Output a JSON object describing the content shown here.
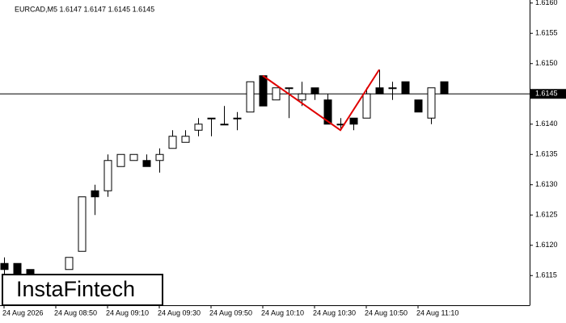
{
  "chart_data": {
    "type": "candlestick",
    "title": "EURCAD,M5  1.6147 1.6147 1.6145 1.6145",
    "brand": "InstaFintech",
    "categories": [
      "24 Aug 2026",
      null,
      null,
      null,
      "24 Aug 08:50",
      null,
      null,
      null,
      "24 Aug 09:10",
      null,
      null,
      null,
      "24 Aug 09:30",
      null,
      null,
      null,
      "24 Aug 09:50",
      null,
      null,
      null,
      "24 Aug 10:10",
      null,
      null,
      null,
      "24 Aug 10:30",
      null,
      null,
      null,
      "24 Aug 10:50",
      null,
      null,
      null,
      "24 Aug 11:10",
      null,
      null
    ],
    "open": [
      1.6117,
      1.6117,
      1.6116,
      null,
      null,
      1.6116,
      1.6119,
      1.6129,
      1.6129,
      1.6133,
      1.6134,
      1.6134,
      1.6134,
      1.6136,
      1.6137,
      1.6139,
      1.6141,
      1.614,
      1.6141,
      1.6142,
      1.6148,
      1.6144,
      1.6146,
      1.6144,
      1.6146,
      1.6144,
      1.614,
      1.6141,
      1.6141,
      1.6146,
      1.6146,
      1.6147,
      1.6144,
      1.6141,
      1.6147
    ],
    "high": [
      1.6118,
      1.6117,
      1.6116,
      null,
      null,
      1.6118,
      1.6128,
      1.613,
      1.6135,
      1.6135,
      1.6135,
      1.6135,
      1.6136,
      1.6139,
      1.6139,
      1.6141,
      1.6141,
      1.6143,
      1.6142,
      1.6147,
      1.6148,
      1.6146,
      1.6146,
      1.6147,
      1.6146,
      1.6145,
      1.6141,
      1.6141,
      1.6146,
      1.6149,
      1.6147,
      1.6147,
      1.6144,
      1.6146,
      1.6147
    ],
    "low": [
      1.6115,
      1.6114,
      1.6114,
      null,
      null,
      1.6116,
      1.6119,
      1.6125,
      1.6128,
      1.6133,
      1.6134,
      1.6133,
      1.6132,
      1.6136,
      1.6137,
      1.6138,
      1.6138,
      1.614,
      1.6139,
      1.6142,
      1.6143,
      1.6144,
      1.6141,
      1.6143,
      1.6144,
      1.614,
      1.6139,
      1.6139,
      1.6141,
      1.6145,
      1.6144,
      1.6145,
      1.6142,
      1.614,
      1.6145
    ],
    "close": [
      1.6116,
      1.6115,
      1.6115,
      null,
      null,
      1.6118,
      1.6128,
      1.6128,
      1.6134,
      1.6135,
      1.6135,
      1.6133,
      1.6135,
      1.6138,
      1.6138,
      1.614,
      1.6141,
      1.614,
      1.6141,
      1.6147,
      1.6143,
      1.6146,
      1.6146,
      1.6145,
      1.6145,
      1.614,
      1.614,
      1.614,
      1.6145,
      1.6145,
      1.6146,
      1.6145,
      1.6142,
      1.6146,
      1.6145
    ],
    "up_color": "#ffffff",
    "down_color": "#000000",
    "ylim": [
      1.61101,
      1.61605
    ],
    "yticks": [
      {
        "value": 1.616,
        "label": "1.6160"
      },
      1.6155,
      {
        "value": 1.615,
        "label": "1.6150"
      },
      1.6145,
      {
        "value": 1.614,
        "label": "1.6140"
      },
      1.6135,
      {
        "value": 1.613,
        "label": "1.6130"
      },
      1.6125,
      {
        "value": 1.612,
        "label": "1.6120"
      },
      1.6115
    ],
    "current_price": 1.6145,
    "pattern": {
      "color": "#e00000",
      "x_index": [
        20,
        26,
        29
      ],
      "values": [
        1.6148,
        1.6139,
        1.6149
      ]
    }
  }
}
